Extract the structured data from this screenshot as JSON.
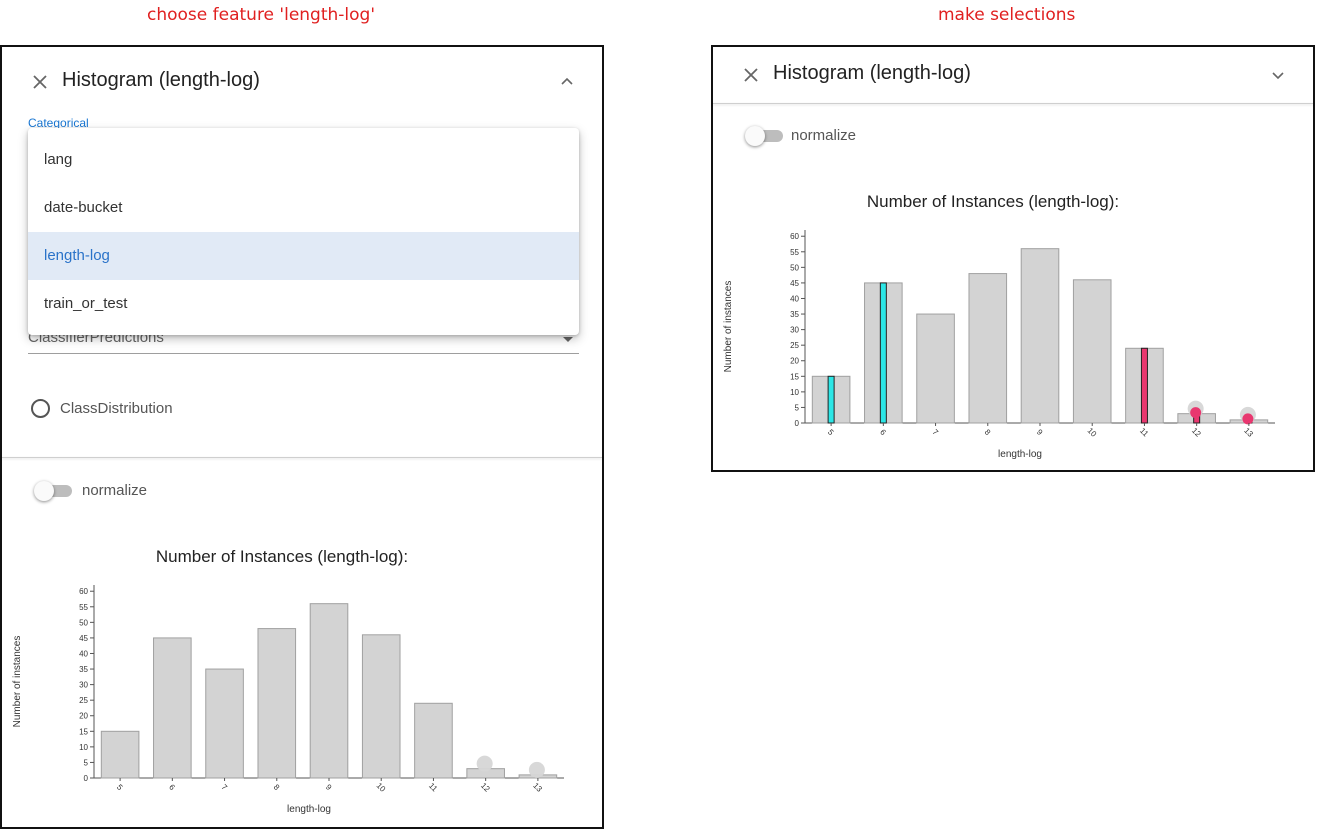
{
  "captions": {
    "left": "choose feature 'length-log'",
    "right": "make selections"
  },
  "left_panel": {
    "title": "Histogram (length-log)",
    "categorical_label": "Categorical",
    "dropdown_options": [
      "lang",
      "date-bucket",
      "length-log",
      "train_or_test"
    ],
    "dropdown_selected": "length-log",
    "classifier_select_value": "ClassifierPredictions",
    "radio_label": "ClassDistribution",
    "radio_checked": false,
    "normalize_label": "normalize",
    "normalize_on": false
  },
  "right_panel": {
    "title": "Histogram (length-log)",
    "normalize_label": "normalize",
    "normalize_on": false
  },
  "icons": {
    "close": "close-icon",
    "collapse": "chevron-up-icon",
    "expand": "chevron-down-icon"
  },
  "colors": {
    "bar_fill": "#d3d3d3",
    "bar_stroke": "#a0a0a0",
    "selection_cyan": "#2ce6e6",
    "selection_pink": "#e8376f",
    "caption_red": "#e02020",
    "accent_blue": "#1976d2"
  },
  "chart_data": [
    {
      "type": "bar",
      "title": "Number of Instances (length-log):",
      "xlabel": "length-log",
      "ylabel": "Number of instances",
      "categories": [
        "5",
        "6",
        "7",
        "8",
        "9",
        "10",
        "11",
        "12",
        "13"
      ],
      "values": [
        15,
        45,
        35,
        48,
        56,
        46,
        24,
        3,
        1
      ],
      "ylim": [
        0,
        62
      ],
      "yticks": [
        0,
        5,
        10,
        15,
        20,
        25,
        30,
        35,
        40,
        45,
        50,
        55,
        60
      ],
      "small_bar_markers": [
        "12",
        "13"
      ],
      "selections": []
    },
    {
      "type": "bar",
      "title": "Number of Instances (length-log):",
      "xlabel": "length-log",
      "ylabel": "Number of instances",
      "categories": [
        "5",
        "6",
        "7",
        "8",
        "9",
        "10",
        "11",
        "12",
        "13"
      ],
      "values": [
        15,
        45,
        35,
        48,
        56,
        46,
        24,
        3,
        1
      ],
      "ylim": [
        0,
        62
      ],
      "yticks": [
        0,
        5,
        10,
        15,
        20,
        25,
        30,
        35,
        40,
        45,
        50,
        55,
        60
      ],
      "small_bar_markers": [
        "12",
        "13"
      ],
      "selections": [
        {
          "category": "5",
          "color": "cyan"
        },
        {
          "category": "6",
          "color": "cyan"
        },
        {
          "category": "11",
          "color": "pink"
        },
        {
          "category": "12",
          "color": "pink"
        },
        {
          "category": "13",
          "color": "pink"
        }
      ]
    }
  ]
}
